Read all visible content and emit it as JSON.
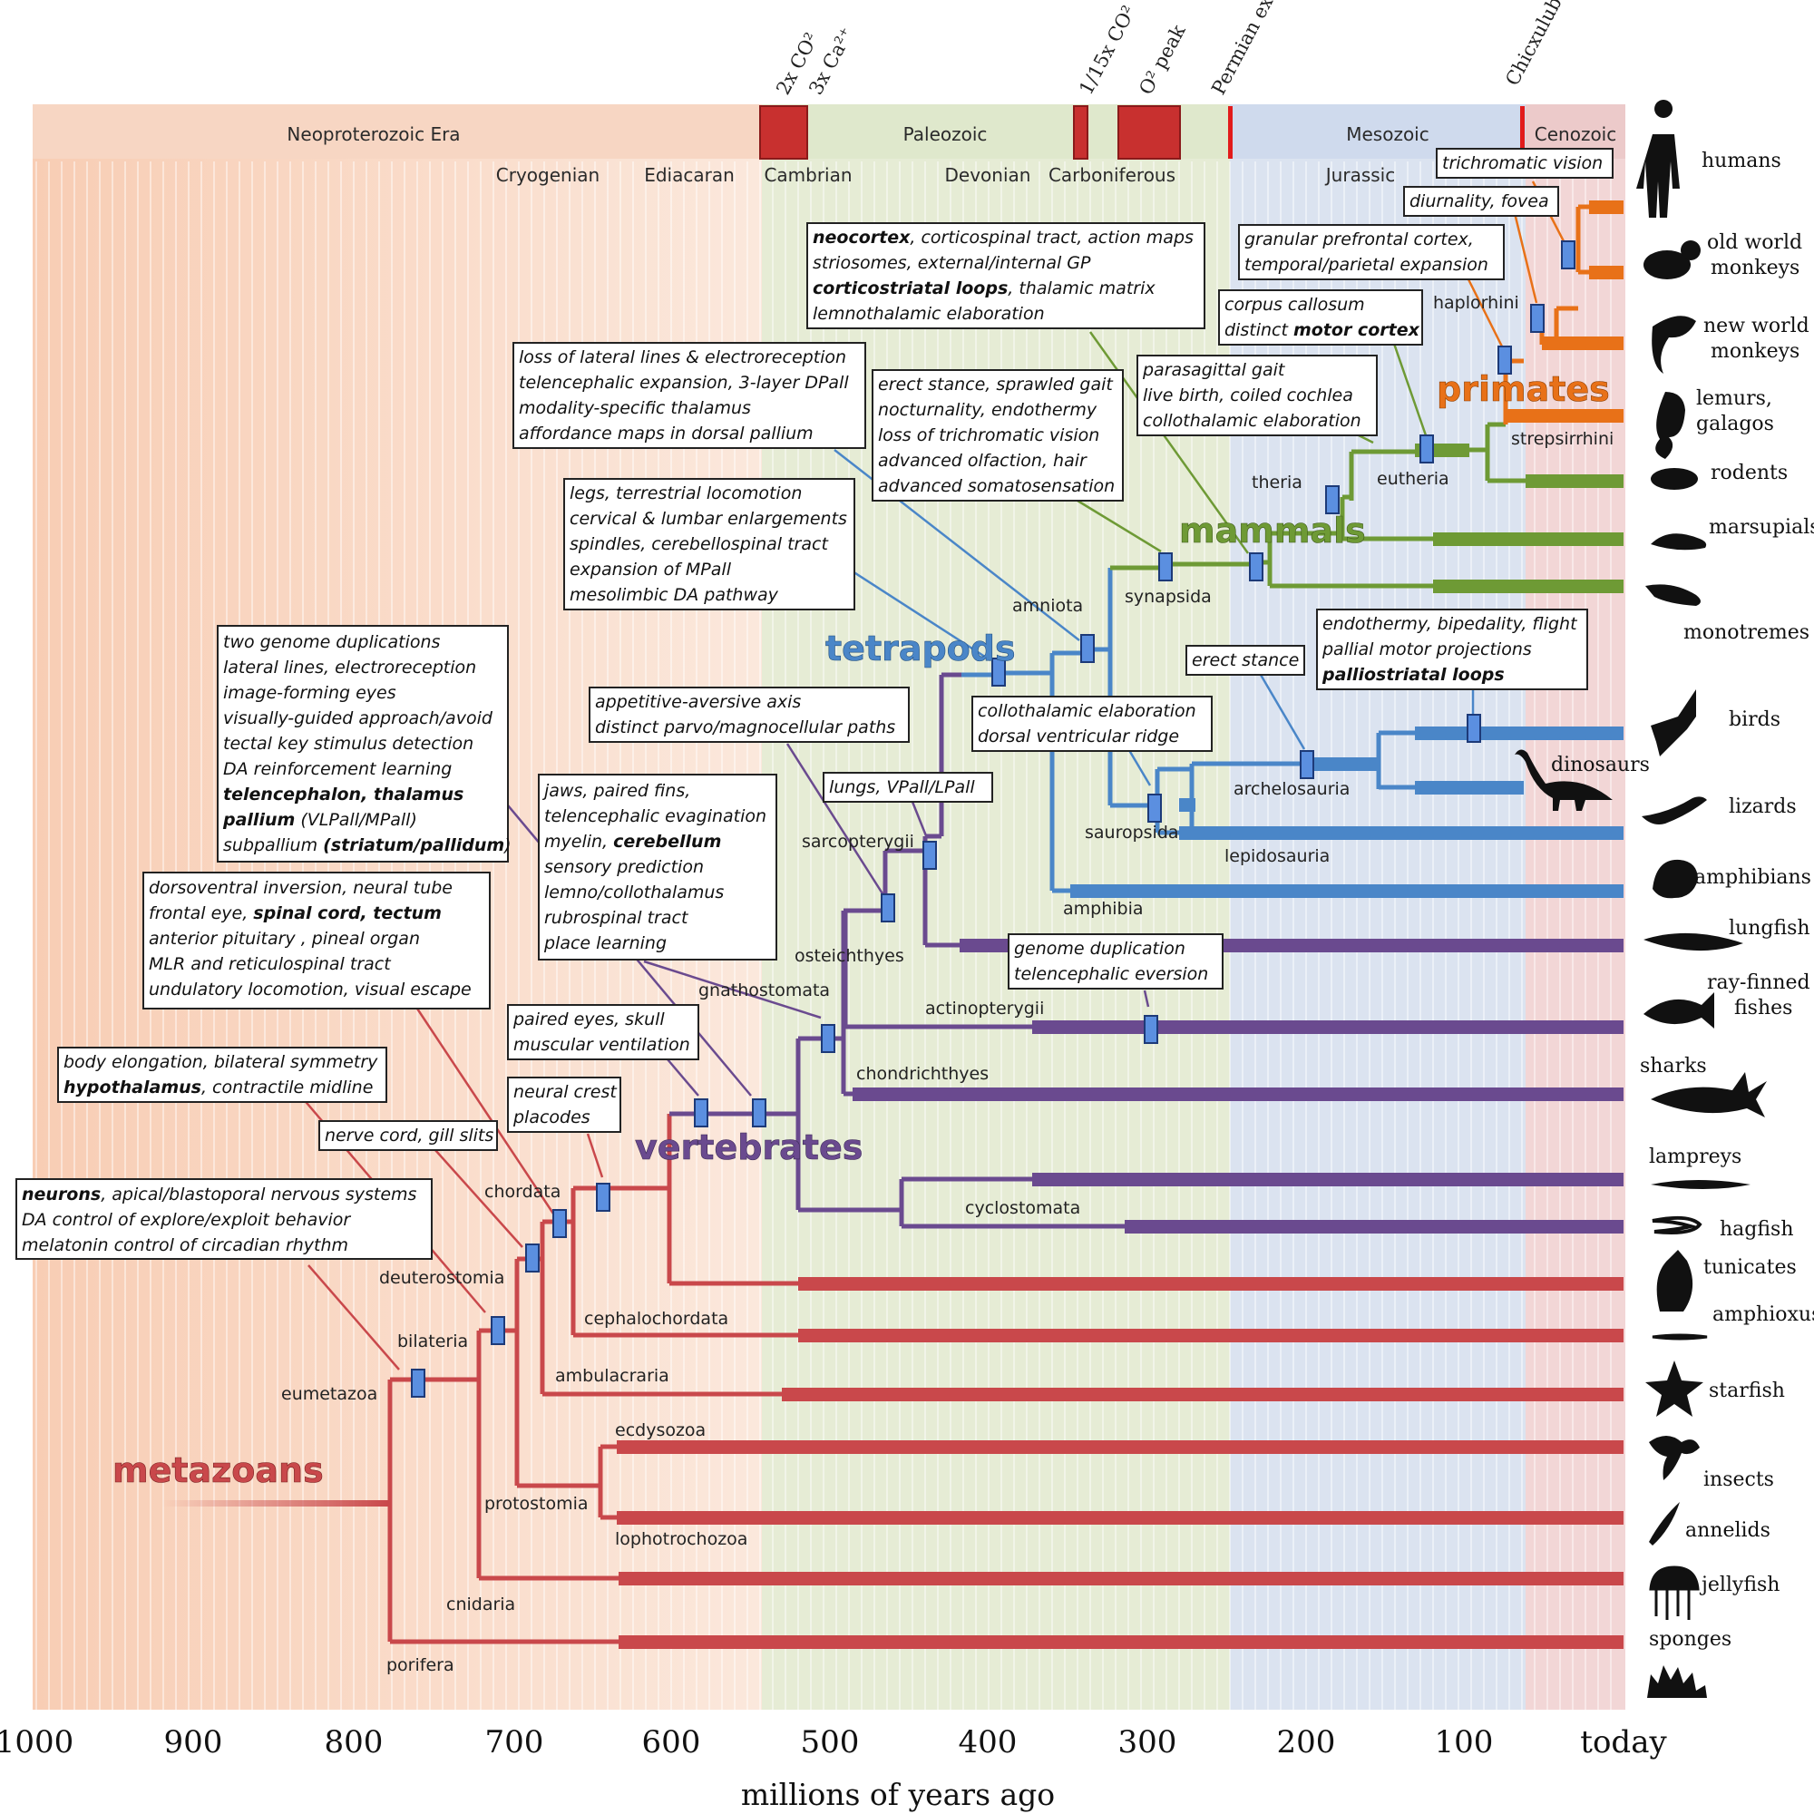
{
  "eras": [
    "Neoproterozoic Era",
    "Paleozoic",
    "Mesozoic",
    "Cenozoic"
  ],
  "periods": [
    "Cryogenian",
    "Ediacaran",
    "Cambrian",
    "Devonian",
    "Carboniferous",
    "Jurassic"
  ],
  "events": {
    "co2_2x": "2x CO²",
    "ca_3x": "3x Ca²⁺",
    "co2_15": "1/15x CO²",
    "o2_peak": "O² peak",
    "permian": "Permian extinction",
    "chicxulub": "Chicxulub impact"
  },
  "axis": {
    "ticks": [
      "1000",
      "900",
      "800",
      "700",
      "600",
      "500",
      "400",
      "300",
      "200",
      "100",
      "today"
    ],
    "title": "millions of years ago"
  },
  "groups": {
    "metazoans": "metazoans",
    "vertebrates": "vertebrates",
    "tetrapods": "tetrapods",
    "mammals": "mammals",
    "primates": "primates"
  },
  "nodes": {
    "eumetazoa": "eumetazoa",
    "bilateria": "bilateria",
    "deuterostomia": "deuterostomia",
    "chordata": "chordata",
    "cephalochordata": "cephalochordata",
    "ambulacraria": "ambulacraria",
    "ecdysozoa": "ecdysozoa",
    "protostomia": "protostomia",
    "lophotrochozoa": "lophotrochozoa",
    "cnidaria": "cnidaria",
    "porifera": "porifera",
    "gnathostomata": "gnathostomata",
    "osteichthyes": "osteichthyes",
    "chondrichthyes": "chondrichthyes",
    "cyclostomata": "cyclostomata",
    "actinopterygii": "actinopterygii",
    "sarcopterygii": "sarcopterygii",
    "amphibia": "amphibia",
    "amniota": "amniota",
    "synapsida": "synapsida",
    "sauropsida": "sauropsida",
    "archelosauria": "archelosauria",
    "lepidosauria": "lepidosauria",
    "theria": "theria",
    "eutheria": "eutheria",
    "haplorhini": "haplorhini",
    "strepsirrhini": "strepsirrhini"
  },
  "taxa": {
    "humans": "humans",
    "old_world": "old world monkeys",
    "new_world": "new world monkeys",
    "lemurs": "lemurs, galagos",
    "rodents": "rodents",
    "marsupials": "marsupials",
    "monotremes": "monotremes",
    "birds": "birds",
    "dinosaurs": "dinosaurs",
    "lizards": "lizards",
    "amphibians": "amphibians",
    "lungfish": "lungfish",
    "rayfinned": "ray-finned fishes",
    "sharks": "sharks",
    "lampreys": "lampreys",
    "hagfish": "hagfish",
    "tunicates": "tunicates",
    "amphioxus": "amphioxus",
    "starfish": "starfish",
    "insects": "insects",
    "annelids": "annelids",
    "jellyfish": "jellyfish",
    "sponges": "sponges"
  },
  "traits": {
    "b1": [
      "neurons, apical/blastoporal nervous systems",
      "DA control of explore/exploit behavior",
      "melatonin control of circadian rhythm"
    ],
    "b2": [
      "body elongation, bilateral symmetry",
      "hypothalamus, contractile midline"
    ],
    "b3": [
      "nerve cord, gill slits"
    ],
    "b4": [
      "dorsoventral inversion, neural tube",
      "frontal eye, spinal cord, tectum",
      "anterior pituitary , pineal organ",
      "MLR and reticulospinal tract",
      "undulatory locomotion, visual escape"
    ],
    "b5": [
      "neural crest",
      "placodes"
    ],
    "b6": [
      "paired eyes, skull",
      "muscular ventilation"
    ],
    "b7": [
      "two genome duplications",
      "lateral lines, electroreception",
      "image-forming eyes",
      "visually-guided approach/avoid",
      "tectal key stimulus detection",
      "DA reinforcement learning",
      "telencephalon, thalamus",
      "pallium (VLPall/MPall)",
      "subpallium (striatum/pallidum)"
    ],
    "b8": [
      "jaws, paired fins,",
      "telencephalic evagination",
      "myelin, cerebellum",
      "sensory prediction",
      "lemno/collothalamus",
      "rubrospinal tract",
      "place learning"
    ],
    "b9": [
      "appetitive-aversive axis",
      "distinct parvo/magnocellular paths"
    ],
    "b10": [
      "lungs, VPall/LPall"
    ],
    "b11": [
      "legs, terrestrial locomotion",
      "cervical & lumbar enlargements",
      "spindles, cerebellospinal tract",
      "expansion of MPall",
      "mesolimbic DA pathway"
    ],
    "b12": [
      "loss of lateral lines & electroreception",
      "telencephalic expansion, 3-layer DPall",
      "modality-specific thalamus",
      "affordance maps in dorsal pallium"
    ],
    "b13": [
      "genome duplication",
      "telencephalic eversion"
    ],
    "b14": [
      "collothalamic elaboration",
      "dorsal ventricular ridge"
    ],
    "b15": [
      "erect stance"
    ],
    "b16": [
      "endothermy, bipedality, flight",
      "pallial motor projections",
      "palliostriatal loops"
    ],
    "b17": [
      "erect stance, sprawled gait",
      "nocturnality, endothermy",
      "loss of trichromatic vision",
      "advanced olfaction, hair",
      "advanced somatosensation"
    ],
    "b18": [
      "neocortex, corticospinal tract, action maps",
      "striosomes, external/internal GP",
      "corticostriatal loops, thalamic matrix",
      "lemnothalamic elaboration"
    ],
    "b19": [
      "parasagittal gait",
      "live birth, coiled cochlea",
      "collothalamic elaboration"
    ],
    "b20": [
      "corpus callosum",
      "distinct motor cortex"
    ],
    "b21": [
      "granular prefrontal cortex,",
      "temporal/parietal expansion"
    ],
    "b22": [
      "diurnality, fovea"
    ],
    "b23": [
      "trichromatic vision"
    ]
  },
  "colors": {
    "metazoa": "#c9484b",
    "vertebrate": "#6a4a8f",
    "tetrapod": "#4a86c8",
    "mammal": "#6e9a35",
    "primate": "#e87118",
    "marker": "#5b8fe0"
  }
}
